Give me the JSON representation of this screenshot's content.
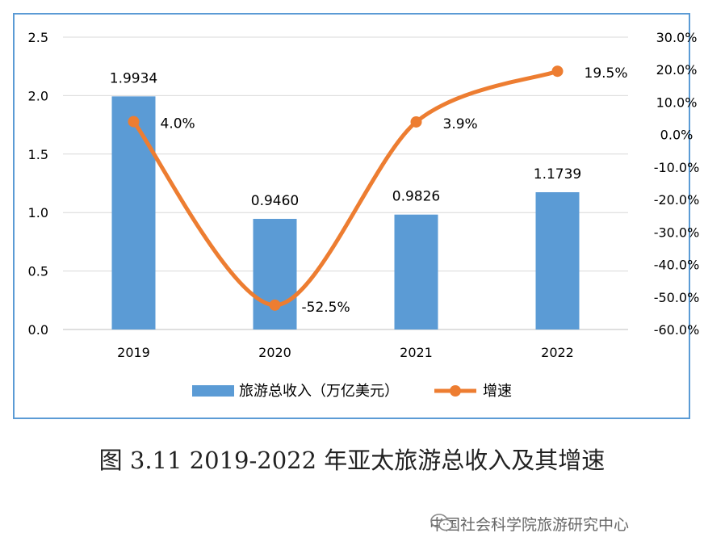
{
  "chart_data": {
    "type": "bar+line",
    "categories": [
      "2019",
      "2020",
      "2021",
      "2022"
    ],
    "series": [
      {
        "name": "旅游总收入（万亿美元）",
        "type": "bar",
        "axis": "left",
        "values": [
          1.9934,
          0.946,
          0.9826,
          1.1739
        ],
        "labels": [
          "1.9934",
          "0.9460",
          "0.9826",
          "1.1739"
        ],
        "color": "#5b9bd5"
      },
      {
        "name": "增速",
        "type": "line",
        "axis": "right",
        "values": [
          4.0,
          -52.5,
          3.9,
          19.5
        ],
        "labels": [
          "4.0%",
          "-52.5%",
          "3.9%",
          "19.5%"
        ],
        "color": "#ed7d31"
      }
    ],
    "ylim_left": [
      0,
      2.5
    ],
    "yticks_left": [
      "0.0",
      "0.5",
      "1.0",
      "1.5",
      "2.0",
      "2.5"
    ],
    "ylim_right": [
      -60,
      30
    ],
    "yticks_right": [
      "-60.0%",
      "-50.0%",
      "-40.0%",
      "-30.0%",
      "-20.0%",
      "-10.0%",
      "0.0%",
      "10.0%",
      "20.0%",
      "30.0%"
    ],
    "grid": true,
    "legend": "bottom"
  },
  "caption": "图 3.11 2019-2022 年亚太旅游总收入及其增速",
  "watermark": "中国社会科学院旅游研究中心",
  "icons": {
    "watermark_icon": "wechat-icon"
  }
}
